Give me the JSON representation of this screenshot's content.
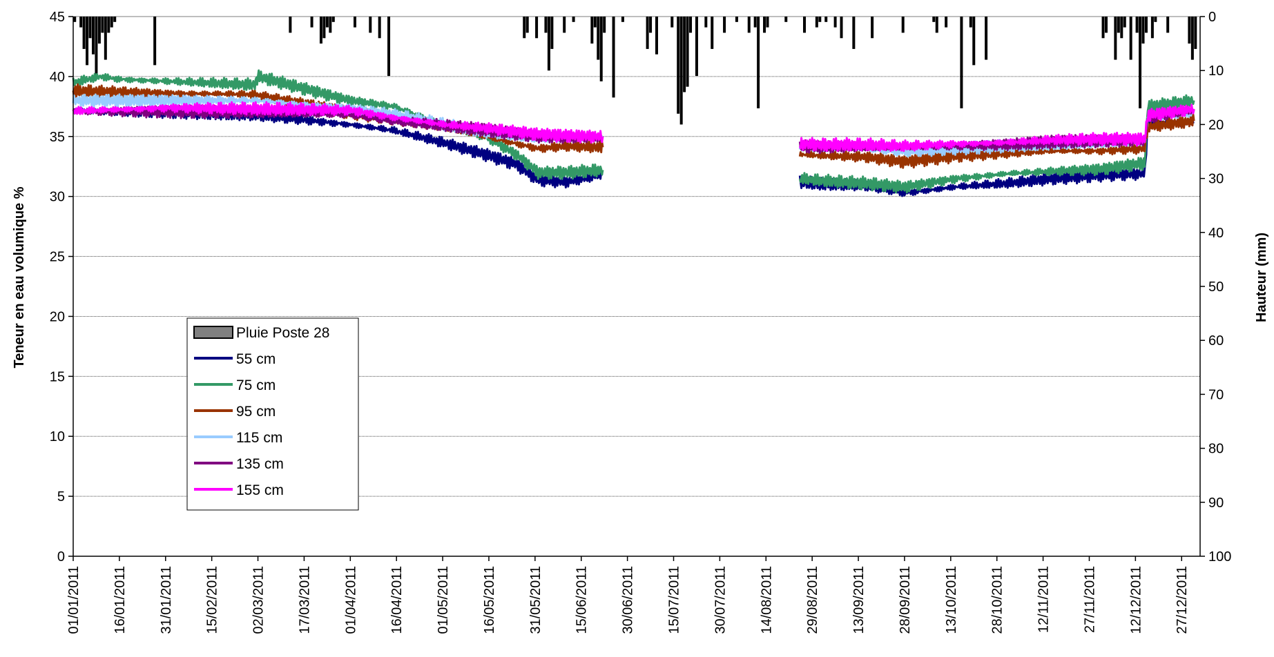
{
  "chart_data": {
    "type": "line",
    "ylabel_left": "Teneur en eau volumique %",
    "ylabel_right": "Hauteur (mm)",
    "y_left_range": [
      0,
      45
    ],
    "y_left_ticks": [
      "0",
      "5",
      "10",
      "15",
      "20",
      "25",
      "30",
      "35",
      "40",
      "45"
    ],
    "y_right_range": [
      0,
      100
    ],
    "y_right_inverted": true,
    "y_right_ticks": [
      "0",
      "10",
      "20",
      "30",
      "40",
      "50",
      "60",
      "70",
      "80",
      "90",
      "100"
    ],
    "x_tick_labels": [
      "01/01/2011",
      "16/01/2011",
      "31/01/2011",
      "15/02/2011",
      "02/03/2011",
      "17/03/2011",
      "01/04/2011",
      "16/04/2011",
      "01/05/2011",
      "16/05/2011",
      "31/05/2011",
      "15/06/2011",
      "30/06/2011",
      "15/07/2011",
      "30/07/2011",
      "14/08/2011",
      "29/08/2011",
      "13/09/2011",
      "28/09/2011",
      "13/10/2011",
      "28/10/2011",
      "12/11/2011",
      "27/11/2011",
      "12/12/2011",
      "27/12/2011"
    ],
    "x_range_days": [
      0,
      366
    ],
    "grid": "horizontal",
    "legend_position": "lower-left",
    "legend": [
      {
        "name": "Pluie Poste 28",
        "kind": "bar",
        "color": "#808080"
      },
      {
        "name": "55 cm",
        "kind": "line",
        "color": "#000080"
      },
      {
        "name": "75 cm",
        "kind": "line",
        "color": "#339966"
      },
      {
        "name": "95 cm",
        "kind": "line",
        "color": "#993300"
      },
      {
        "name": "115 cm",
        "kind": "line",
        "color": "#99ccff"
      },
      {
        "name": "135 cm",
        "kind": "line",
        "color": "#800080"
      },
      {
        "name": "155 cm",
        "kind": "line",
        "color": "#ff00ff"
      }
    ],
    "rain_series": {
      "name": "Pluie Poste 28",
      "axis": "right",
      "x_date": [
        "01/01",
        "03/01",
        "04/01",
        "05/01",
        "06/01",
        "07/01",
        "08/01",
        "09/01",
        "10/01",
        "11/01",
        "12/01",
        "13/01",
        "14/01",
        "27/01",
        "12/03",
        "19/03",
        "22/03",
        "23/03",
        "24/03",
        "25/03",
        "26/03",
        "02/04",
        "07/04",
        "10/04",
        "13/04",
        "27/05",
        "28/05",
        "31/05",
        "03/06",
        "04/06",
        "05/06",
        "09/06",
        "12/06",
        "18/06",
        "19/06",
        "20/06",
        "21/06",
        "22/06",
        "25/06",
        "28/06",
        "06/07",
        "07/07",
        "09/07",
        "14/07",
        "16/07",
        "17/07",
        "18/07",
        "19/07",
        "20/07",
        "22/07",
        "25/07",
        "27/07",
        "31/07",
        "04/08",
        "08/08",
        "10/08",
        "11/08",
        "13/08",
        "14/08",
        "20/08",
        "26/08",
        "30/08",
        "31/08",
        "02/09",
        "05/09",
        "07/09",
        "11/09",
        "17/09",
        "27/09",
        "07/10",
        "08/10",
        "11/10",
        "16/10",
        "19/10",
        "20/10",
        "24/10",
        "01/12",
        "02/12",
        "05/12",
        "06/12",
        "07/12",
        "08/12",
        "10/12",
        "12/12",
        "13/12",
        "14/12",
        "15/12",
        "17/12",
        "18/12",
        "22/12",
        "29/12",
        "30/12",
        "31/12"
      ],
      "values": [
        1,
        2,
        6,
        9,
        4,
        7,
        11,
        5,
        3,
        8,
        3,
        2,
        1,
        9,
        3,
        2,
        5,
        4,
        2,
        3,
        1,
        2,
        3,
        4,
        11,
        4,
        3,
        4,
        3,
        10,
        6,
        3,
        1,
        5,
        2,
        8,
        12,
        3,
        15,
        1,
        6,
        3,
        7,
        2,
        18,
        20,
        14,
        13,
        3,
        11,
        2,
        6,
        3,
        1,
        3,
        2,
        17,
        3,
        2,
        1,
        3,
        2,
        1,
        1,
        2,
        4,
        6,
        4,
        3,
        1,
        3,
        2,
        17,
        2,
        9,
        8,
        4,
        3,
        8,
        3,
        4,
        2,
        8,
        3,
        17,
        5,
        3,
        4,
        1,
        3,
        5,
        8,
        6
      ]
    },
    "series": [
      {
        "name": "55 cm",
        "color": "#000080",
        "x_date": [
          "01/01",
          "01/02",
          "01/03",
          "01/04",
          "15/04",
          "01/05",
          "15/05",
          "25/05",
          "01/06",
          "10/06",
          "22/06",
          "25/08",
          "01/09",
          "15/09",
          "28/09",
          "15/10",
          "01/11",
          "15/11",
          "01/12",
          "15/12",
          "16/12",
          "31/12"
        ],
        "values": [
          37.2,
          37.0,
          36.8,
          36.0,
          35.5,
          34.5,
          33.5,
          32.7,
          31.4,
          31.2,
          31.8,
          31.2,
          31.0,
          30.9,
          30.3,
          30.8,
          31.1,
          31.5,
          31.8,
          31.9,
          36.0,
          36.2
        ]
      },
      {
        "name": "75 cm",
        "color": "#339966",
        "x_date": [
          "01/01",
          "10/01",
          "15/01",
          "01/02",
          "01/03",
          "02/03",
          "01/04",
          "15/04",
          "01/05",
          "15/05",
          "25/05",
          "01/06",
          "10/06",
          "22/06",
          "25/08",
          "01/09",
          "15/09",
          "28/09",
          "15/10",
          "01/11",
          "15/11",
          "01/12",
          "15/12",
          "16/12",
          "31/12"
        ],
        "values": [
          39.5,
          40.0,
          39.8,
          39.6,
          39.3,
          40.0,
          38.0,
          37.5,
          36.0,
          35.0,
          33.5,
          32.0,
          32.0,
          32.2,
          31.5,
          31.3,
          31.1,
          30.8,
          31.5,
          31.9,
          32.1,
          32.3,
          32.8,
          37.5,
          38.0
        ]
      },
      {
        "name": "95 cm",
        "color": "#993300",
        "x_date": [
          "01/01",
          "01/02",
          "01/03",
          "01/04",
          "15/04",
          "01/05",
          "15/05",
          "01/06",
          "10/06",
          "22/06",
          "25/08",
          "01/09",
          "15/09",
          "28/09",
          "15/10",
          "01/11",
          "15/11",
          "01/12",
          "15/12",
          "16/12",
          "31/12"
        ],
        "values": [
          38.8,
          38.6,
          38.5,
          37.0,
          36.5,
          35.8,
          35.0,
          34.0,
          34.2,
          34.1,
          33.5,
          33.4,
          33.3,
          32.9,
          33.4,
          33.6,
          33.8,
          33.8,
          34.0,
          35.8,
          36.3
        ]
      },
      {
        "name": "115 cm",
        "color": "#99ccff",
        "x_date": [
          "01/01",
          "01/02",
          "01/03",
          "01/04",
          "15/04",
          "01/05",
          "15/05",
          "01/06",
          "10/06",
          "22/06",
          "25/08",
          "01/09",
          "15/09",
          "28/09",
          "15/10",
          "01/11",
          "15/11",
          "01/12",
          "15/12",
          "16/12",
          "31/12"
        ],
        "values": [
          38.0,
          38.0,
          38.0,
          37.3,
          36.8,
          36.0,
          35.3,
          34.8,
          34.8,
          34.9,
          34.2,
          34.0,
          34.0,
          33.7,
          34.0,
          34.2,
          34.3,
          34.4,
          34.5,
          36.5,
          37.0
        ]
      },
      {
        "name": "135 cm",
        "color": "#800080",
        "x_date": [
          "01/01",
          "01/02",
          "01/03",
          "01/04",
          "15/04",
          "01/05",
          "15/05",
          "01/06",
          "10/06",
          "22/06",
          "25/08",
          "01/09",
          "15/09",
          "28/09",
          "15/10",
          "01/11",
          "15/11",
          "01/12",
          "15/12",
          "16/12",
          "31/12"
        ],
        "values": [
          37.1,
          37.1,
          37.0,
          36.8,
          36.3,
          35.9,
          35.5,
          35.0,
          34.9,
          34.9,
          34.2,
          34.1,
          34.1,
          34.1,
          34.2,
          34.3,
          34.5,
          34.6,
          34.7,
          36.5,
          37.2
        ]
      },
      {
        "name": "155 cm",
        "color": "#ff00ff",
        "x_date": [
          "01/01",
          "01/02",
          "01/03",
          "01/04",
          "15/04",
          "01/05",
          "15/05",
          "01/06",
          "10/06",
          "22/06",
          "25/08",
          "01/09",
          "15/09",
          "28/09",
          "15/10",
          "01/11",
          "15/11",
          "01/12",
          "15/12",
          "16/12",
          "31/12"
        ],
        "values": [
          37.1,
          37.4,
          37.3,
          37.2,
          36.6,
          36.0,
          35.7,
          35.2,
          35.1,
          35.0,
          34.4,
          34.3,
          34.3,
          34.2,
          34.4,
          34.5,
          34.7,
          34.8,
          34.8,
          36.8,
          37.3
        ]
      }
    ]
  }
}
